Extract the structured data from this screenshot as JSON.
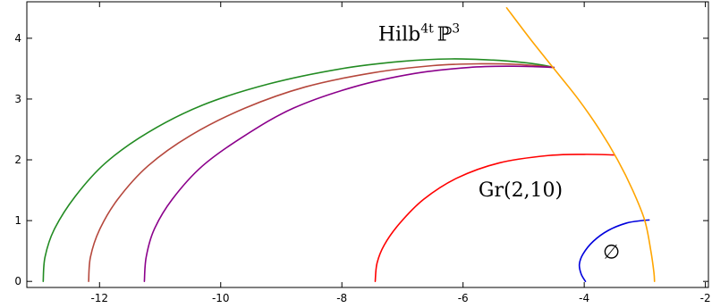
{
  "chart_data": {
    "type": "line",
    "title": "",
    "xlabel": "",
    "ylabel": "",
    "xlim": [
      -13.2,
      -1.95
    ],
    "ylim": [
      -0.1,
      4.6
    ],
    "xticks": [
      -12,
      -10,
      -8,
      -6,
      -4,
      -2
    ],
    "yticks": [
      0,
      1,
      2,
      3,
      4
    ],
    "xtick_labels": [
      "-12",
      "-10",
      "-8",
      "-6",
      "-4",
      "-2"
    ],
    "ytick_labels": [
      "0",
      "1",
      "2",
      "3",
      "4"
    ],
    "grid": false,
    "series": [
      {
        "color": "#228b22",
        "points": [
          [
            -12.93,
            0
          ],
          [
            -12.9,
            0.4
          ],
          [
            -12.75,
            0.85
          ],
          [
            -12.4,
            1.4
          ],
          [
            -11.9,
            1.95
          ],
          [
            -11.2,
            2.45
          ],
          [
            -10.3,
            2.9
          ],
          [
            -9.2,
            3.25
          ],
          [
            -8.0,
            3.5
          ],
          [
            -7.0,
            3.62
          ],
          [
            -6.2,
            3.66
          ],
          [
            -5.5,
            3.64
          ],
          [
            -5.0,
            3.6
          ],
          [
            -4.7,
            3.56
          ],
          [
            -4.5,
            3.52
          ]
        ]
      },
      {
        "color": "#b5473c",
        "points": [
          [
            -12.18,
            0
          ],
          [
            -12.15,
            0.4
          ],
          [
            -12.0,
            0.85
          ],
          [
            -11.7,
            1.35
          ],
          [
            -11.2,
            1.9
          ],
          [
            -10.5,
            2.4
          ],
          [
            -9.6,
            2.85
          ],
          [
            -8.6,
            3.2
          ],
          [
            -7.5,
            3.43
          ],
          [
            -6.5,
            3.55
          ],
          [
            -5.7,
            3.58
          ],
          [
            -5.1,
            3.57
          ],
          [
            -4.7,
            3.54
          ],
          [
            -4.5,
            3.52
          ]
        ]
      },
      {
        "color": "#8b008b",
        "points": [
          [
            -11.26,
            0
          ],
          [
            -11.23,
            0.4
          ],
          [
            -11.1,
            0.85
          ],
          [
            -10.8,
            1.35
          ],
          [
            -10.3,
            1.9
          ],
          [
            -9.6,
            2.4
          ],
          [
            -8.8,
            2.85
          ],
          [
            -7.8,
            3.2
          ],
          [
            -6.8,
            3.42
          ],
          [
            -5.9,
            3.52
          ],
          [
            -5.2,
            3.54
          ],
          [
            -4.75,
            3.53
          ],
          [
            -4.5,
            3.52
          ]
        ]
      },
      {
        "color": "#ff0000",
        "points": [
          [
            -7.45,
            0
          ],
          [
            -7.42,
            0.3
          ],
          [
            -7.3,
            0.6
          ],
          [
            -7.05,
            0.95
          ],
          [
            -6.65,
            1.35
          ],
          [
            -6.1,
            1.7
          ],
          [
            -5.4,
            1.95
          ],
          [
            -4.6,
            2.07
          ],
          [
            -4.0,
            2.09
          ],
          [
            -3.5,
            2.08
          ]
        ]
      },
      {
        "color": "#0000dd",
        "points": [
          [
            -3.98,
            0
          ],
          [
            -4.05,
            0.12
          ],
          [
            -4.08,
            0.28
          ],
          [
            -4.02,
            0.45
          ],
          [
            -3.85,
            0.66
          ],
          [
            -3.6,
            0.84
          ],
          [
            -3.3,
            0.96
          ],
          [
            -3.05,
            1.0
          ],
          [
            -2.93,
            1.01
          ]
        ]
      },
      {
        "color": "#ffa500",
        "points": [
          [
            -5.28,
            4.5
          ],
          [
            -4.9,
            4.0
          ],
          [
            -4.5,
            3.5
          ],
          [
            -4.1,
            3.0
          ],
          [
            -3.75,
            2.5
          ],
          [
            -3.45,
            2.0
          ],
          [
            -3.2,
            1.5
          ],
          [
            -3.0,
            1.0
          ],
          [
            -2.9,
            0.5
          ],
          [
            -2.85,
            0.15
          ],
          [
            -2.84,
            0
          ]
        ]
      }
    ],
    "annotations": [
      {
        "id": "hilb",
        "base": "Hilb",
        "sup": "4t",
        "tail": "ℙ",
        "tail_sup": "3",
        "x": -7.4,
        "y": 3.96
      },
      {
        "id": "gr",
        "text": "Gr(2,10)",
        "x": -5.05,
        "y": 1.4
      },
      {
        "id": "empty",
        "text": "∅",
        "x": -3.55,
        "y": 0.38
      }
    ]
  }
}
